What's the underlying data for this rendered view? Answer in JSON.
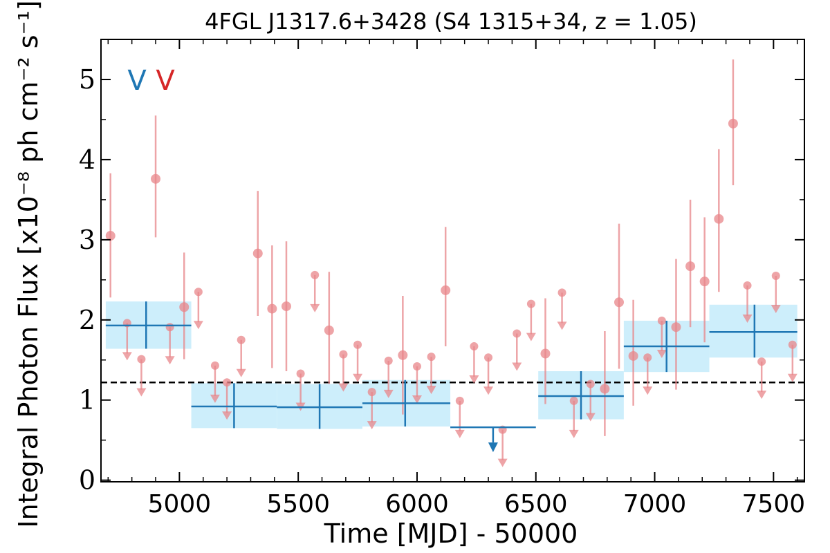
{
  "chart_data": {
    "type": "scatter",
    "title": "4FGL J1317.6+3428 (S4 1315+34, z = 1.05)",
    "xlabel": "Time [MJD] - 50000",
    "ylabel": "Integral Photon Flux [x10⁻⁸ ph cm⁻² s⁻¹]",
    "xlim": [
      4670,
      7630
    ],
    "ylim": [
      -0.02,
      5.5
    ],
    "x_ticks": [
      "5000",
      "5500",
      "6000",
      "6500",
      "7000",
      "7500"
    ],
    "y_ticks": [
      "0",
      "1",
      "2",
      "3",
      "4",
      "5"
    ],
    "reference_level": 1.22,
    "markers": [
      {
        "label": "V",
        "color": "#1f77b4"
      },
      {
        "label": "V",
        "color": "#d62728"
      }
    ],
    "colors": {
      "long_bins": "#1f77b4",
      "long_band": "#cdeefb",
      "short_bins": "#e8868a",
      "reference": "#000000"
    },
    "series": [
      {
        "bin": "long",
        "points": [
          {
            "x": 4860,
            "x_start": 4690,
            "x_end": 5050,
            "y": 1.93,
            "y_low": 1.64,
            "y_high": 2.23
          },
          {
            "x": 5230,
            "x_start": 5050,
            "x_end": 5410,
            "y": 0.92,
            "y_low": 0.65,
            "y_high": 1.21
          },
          {
            "x": 5590,
            "x_start": 5410,
            "x_end": 5770,
            "y": 0.91,
            "y_low": 0.64,
            "y_high": 1.2
          },
          {
            "x": 5950,
            "x_start": 5770,
            "x_end": 6140,
            "y": 0.96,
            "y_low": 0.67,
            "y_high": 1.25
          },
          {
            "x": 6320,
            "x_start": 6140,
            "x_end": 6500,
            "y": 0.66,
            "upper_limit": true
          },
          {
            "x": 6690,
            "x_start": 6510,
            "x_end": 6870,
            "y": 1.05,
            "y_low": 0.76,
            "y_high": 1.36
          },
          {
            "x": 7050,
            "x_start": 6870,
            "x_end": 7230,
            "y": 1.67,
            "y_low": 1.35,
            "y_high": 1.99
          },
          {
            "x": 7420,
            "x_start": 7230,
            "x_end": 7600,
            "y": 1.85,
            "y_low": 1.53,
            "y_high": 2.19
          }
        ]
      },
      {
        "bin": "short",
        "points": [
          {
            "x": 4710,
            "y": 3.05,
            "y_low": 2.28,
            "y_high": 3.83
          },
          {
            "x": 4780,
            "y": 1.96,
            "upper_limit": true
          },
          {
            "x": 4840,
            "y": 1.51,
            "upper_limit": true
          },
          {
            "x": 4900,
            "y": 3.76,
            "y_low": 3.03,
            "y_high": 4.55
          },
          {
            "x": 4960,
            "y": 1.91,
            "upper_limit": true
          },
          {
            "x": 5020,
            "y": 2.16,
            "y_low": 1.51,
            "y_high": 2.84
          },
          {
            "x": 5080,
            "y": 2.35,
            "upper_limit": true
          },
          {
            "x": 5150,
            "y": 1.43,
            "upper_limit": true
          },
          {
            "x": 5200,
            "y": 1.22,
            "upper_limit": true
          },
          {
            "x": 5260,
            "y": 1.75,
            "upper_limit": true
          },
          {
            "x": 5330,
            "y": 2.83,
            "y_low": 2.05,
            "y_high": 3.61
          },
          {
            "x": 5390,
            "y": 2.14,
            "y_low": 1.4,
            "y_high": 2.93
          },
          {
            "x": 5450,
            "y": 2.17,
            "y_low": 1.36,
            "y_high": 2.98
          },
          {
            "x": 5510,
            "y": 1.33,
            "upper_limit": true
          },
          {
            "x": 5570,
            "y": 2.56,
            "upper_limit": true
          },
          {
            "x": 5630,
            "y": 1.87,
            "y_low": 1.2,
            "y_high": 2.6
          },
          {
            "x": 5690,
            "y": 1.57,
            "upper_limit": true
          },
          {
            "x": 5750,
            "y": 1.69,
            "upper_limit": true
          },
          {
            "x": 5810,
            "y": 1.1,
            "upper_limit": true
          },
          {
            "x": 5880,
            "y": 1.49,
            "upper_limit": true
          },
          {
            "x": 5940,
            "y": 1.56,
            "y_low": 0.82,
            "y_high": 2.3
          },
          {
            "x": 6000,
            "y": 1.42,
            "upper_limit": true
          },
          {
            "x": 6060,
            "y": 1.54,
            "upper_limit": true
          },
          {
            "x": 6120,
            "y": 2.37,
            "y_low": 1.67,
            "y_high": 3.16
          },
          {
            "x": 6180,
            "y": 0.99,
            "upper_limit": true
          },
          {
            "x": 6240,
            "y": 1.67,
            "upper_limit": true
          },
          {
            "x": 6300,
            "y": 1.53,
            "upper_limit": true
          },
          {
            "x": 6360,
            "y": 0.63,
            "upper_limit": true
          },
          {
            "x": 6420,
            "y": 1.83,
            "upper_limit": true
          },
          {
            "x": 6480,
            "y": 2.2,
            "upper_limit": true
          },
          {
            "x": 6540,
            "y": 1.58,
            "y_low": 0.95,
            "y_high": 2.27
          },
          {
            "x": 6610,
            "y": 2.34,
            "upper_limit": true
          },
          {
            "x": 6660,
            "y": 0.99,
            "upper_limit": true
          },
          {
            "x": 6730,
            "y": 1.2,
            "upper_limit": true
          },
          {
            "x": 6790,
            "y": 1.14,
            "y_low": 0.55,
            "y_high": 1.86
          },
          {
            "x": 6850,
            "y": 2.22,
            "y_low": 1.39,
            "y_high": 3.2
          },
          {
            "x": 6910,
            "y": 1.55,
            "y_low": 0.93,
            "y_high": 2.25
          },
          {
            "x": 6970,
            "y": 1.53,
            "upper_limit": true
          },
          {
            "x": 7030,
            "y": 1.99,
            "upper_limit": true
          },
          {
            "x": 7090,
            "y": 1.91,
            "y_low": 1.13,
            "y_high": 2.76
          },
          {
            "x": 7150,
            "y": 2.67,
            "y_low": 1.91,
            "y_high": 3.5
          },
          {
            "x": 7210,
            "y": 2.48,
            "y_low": 1.72,
            "y_high": 3.28
          },
          {
            "x": 7270,
            "y": 3.26,
            "y_low": 2.35,
            "y_high": 4.13
          },
          {
            "x": 7330,
            "y": 4.45,
            "y_low": 3.68,
            "y_high": 5.25
          },
          {
            "x": 7390,
            "y": 2.43,
            "upper_limit": true
          },
          {
            "x": 7450,
            "y": 1.48,
            "upper_limit": true
          },
          {
            "x": 7510,
            "y": 2.55,
            "upper_limit": true
          },
          {
            "x": 7580,
            "y": 1.69,
            "upper_limit": true
          }
        ]
      }
    ]
  }
}
